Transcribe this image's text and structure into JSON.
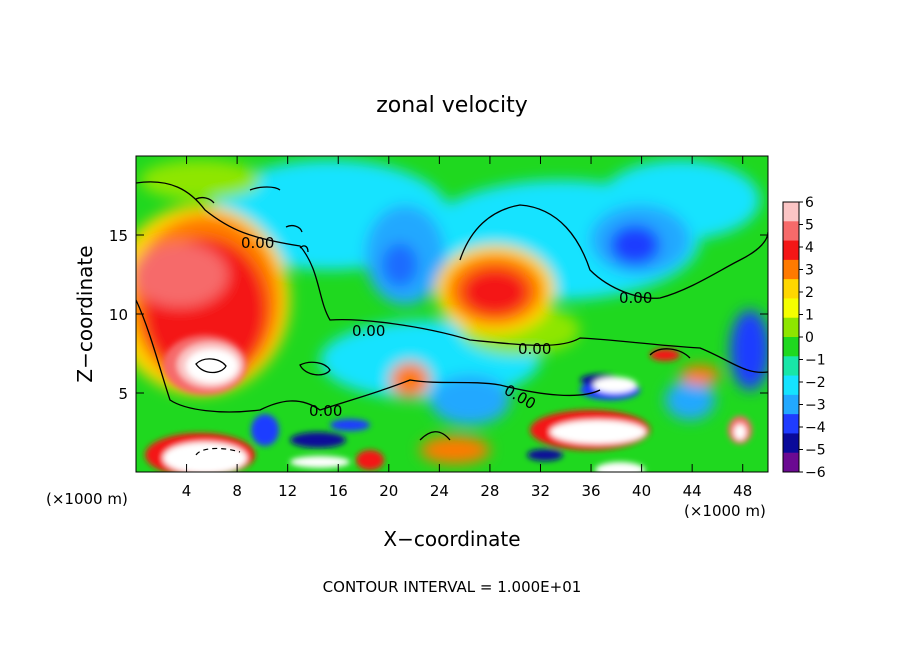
{
  "chart_data": {
    "type": "heatmap",
    "title": "zonal velocity",
    "xlabel": "X−coordinate",
    "ylabel": "Z−coordinate",
    "x_unit_label": "(×1000 m)",
    "x_unit_label_right": "(×1000 m)",
    "xlim": [
      0,
      50
    ],
    "ylim": [
      0,
      20
    ],
    "x_ticks": [
      4,
      8,
      12,
      16,
      20,
      24,
      28,
      32,
      36,
      40,
      44,
      48
    ],
    "y_ticks": [
      5,
      10,
      15
    ],
    "colorbar": {
      "ticks": [
        6,
        5,
        4,
        3,
        2,
        1,
        0,
        -1,
        -2,
        -3,
        -4,
        -5,
        -6
      ],
      "tick_labels": [
        "6",
        "5",
        "4",
        "3",
        "2",
        "1",
        "0",
        "−1",
        "−2",
        "−3",
        "−4",
        "−5",
        "−6"
      ],
      "colors": [
        "#fbc5c5",
        "#f66a6a",
        "#f41616",
        "#ff7a00",
        "#ffd700",
        "#f5ff00",
        "#8ee600",
        "#1fd81f",
        "#18e6a8",
        "#15e3ff",
        "#22a8ff",
        "#1f3cff",
        "#0a0a9a",
        "#6b0a92"
      ]
    },
    "contour_labels": [
      "0.00",
      "0.00",
      "0.00",
      "0.00",
      "0.00",
      "0.00"
    ],
    "footer": "CONTOUR INTERVAL = 1.000E+01"
  }
}
